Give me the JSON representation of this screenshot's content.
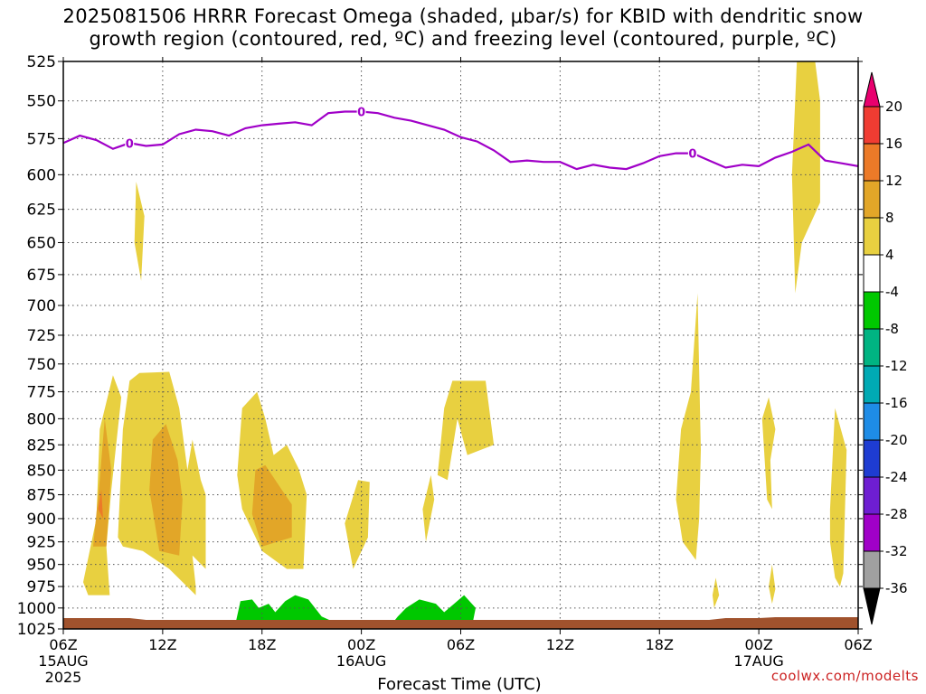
{
  "title": {
    "line1": "2025081506 HRRR Forecast Omega (shaded, μbar/s) for KBID with dendritic snow",
    "line2": "growth region (contoured, red, ºC) and freezing level (contoured, purple, ºC)"
  },
  "xlabel": "Forecast Time (UTC)",
  "credit": "coolwx.com/modelts",
  "chart_data": {
    "type": "time-height",
    "x_unit": "hours since 2025-08-15 06Z",
    "x_ticks": [
      {
        "x": 0,
        "label": "06Z",
        "date": "15AUG",
        "year": "2025"
      },
      {
        "x": 6,
        "label": "12Z"
      },
      {
        "x": 12,
        "label": "18Z"
      },
      {
        "x": 18,
        "label": "00Z",
        "date": "16AUG"
      },
      {
        "x": 24,
        "label": "06Z"
      },
      {
        "x": 30,
        "label": "12Z"
      },
      {
        "x": 36,
        "label": "18Z"
      },
      {
        "x": 42,
        "label": "00Z",
        "date": "17AUG"
      },
      {
        "x": 48,
        "label": "06Z"
      }
    ],
    "xlim": [
      0,
      48
    ],
    "ylim_hpa": [
      525,
      1025
    ],
    "y_ticks": [
      525,
      550,
      575,
      600,
      625,
      650,
      675,
      700,
      725,
      750,
      775,
      800,
      825,
      850,
      875,
      900,
      925,
      950,
      975,
      1000,
      1025
    ],
    "grid": true,
    "colorbar": {
      "labels": [
        "20",
        "16",
        "12",
        "8",
        "4",
        "-4",
        "-8",
        "-12",
        "-16",
        "-20",
        "-24",
        "-28",
        "-32",
        "-36"
      ],
      "colors_top_to_bottom": [
        "#e8006e",
        "#f03c32",
        "#ec7a28",
        "#e2a628",
        "#e8d040",
        "#ffffff",
        "#00c800",
        "#00b482",
        "#00aab4",
        "#1e8ce6",
        "#1e3cd2",
        "#6e1ed2",
        "#a000c8",
        "#a0a0a0",
        "#000000"
      ]
    },
    "freezing_level": {
      "label": "0",
      "color": "#a000c8",
      "points": [
        [
          0,
          578
        ],
        [
          1,
          573
        ],
        [
          2,
          576
        ],
        [
          3,
          582
        ],
        [
          4,
          578
        ],
        [
          5,
          580
        ],
        [
          6,
          579
        ],
        [
          7,
          572
        ],
        [
          8,
          569
        ],
        [
          9,
          570
        ],
        [
          10,
          573
        ],
        [
          11,
          568
        ],
        [
          12,
          566
        ],
        [
          13,
          565
        ],
        [
          14,
          564
        ],
        [
          15,
          566
        ],
        [
          16,
          558
        ],
        [
          17,
          557
        ],
        [
          18,
          557
        ],
        [
          19,
          558
        ],
        [
          20,
          561
        ],
        [
          21,
          563
        ],
        [
          22,
          566
        ],
        [
          23,
          569
        ],
        [
          24,
          574
        ],
        [
          25,
          577
        ],
        [
          26,
          583
        ],
        [
          27,
          591
        ],
        [
          28,
          590
        ],
        [
          29,
          591
        ],
        [
          30,
          591
        ],
        [
          31,
          596
        ],
        [
          32,
          593
        ],
        [
          33,
          595
        ],
        [
          34,
          596
        ],
        [
          35,
          592
        ],
        [
          36,
          587
        ],
        [
          37,
          585
        ],
        [
          38,
          585
        ],
        [
          39,
          590
        ],
        [
          40,
          595
        ],
        [
          41,
          593
        ],
        [
          42,
          594
        ],
        [
          43,
          588
        ],
        [
          44,
          584
        ],
        [
          45,
          579
        ],
        [
          46,
          590
        ],
        [
          47,
          592
        ],
        [
          48,
          594
        ]
      ]
    },
    "omega_regions": [
      {
        "level": "4",
        "color": "#e8d040",
        "points": [
          [
            1.2,
            970
          ],
          [
            2.0,
            900
          ],
          [
            2.2,
            810
          ],
          [
            3.0,
            760
          ],
          [
            3.5,
            780
          ],
          [
            2.9,
            870
          ],
          [
            2.6,
            930
          ],
          [
            2.8,
            985
          ],
          [
            1.5,
            985
          ]
        ]
      },
      {
        "level": "8",
        "color": "#e2a628",
        "points": [
          [
            1.8,
            930
          ],
          [
            2.2,
            860
          ],
          [
            2.5,
            800
          ],
          [
            2.9,
            850
          ],
          [
            2.6,
            930
          ]
        ]
      },
      {
        "level": "12",
        "color": "#ec7a28",
        "points": [
          [
            2.1,
            890
          ],
          [
            2.3,
            870
          ],
          [
            2.4,
            900
          ]
        ]
      },
      {
        "level": "4",
        "color": "#e8d040",
        "points": [
          [
            3.3,
            920
          ],
          [
            3.6,
            810
          ],
          [
            4.0,
            765
          ],
          [
            4.6,
            758
          ],
          [
            6.4,
            757
          ],
          [
            7.0,
            790
          ],
          [
            7.5,
            850
          ],
          [
            7.8,
            820
          ],
          [
            8.3,
            860
          ],
          [
            8.6,
            875
          ],
          [
            8.6,
            955
          ],
          [
            7.8,
            940
          ],
          [
            8.0,
            975
          ],
          [
            8.0,
            985
          ],
          [
            6.4,
            955
          ],
          [
            4.8,
            935
          ],
          [
            3.6,
            930
          ]
        ]
      },
      {
        "level": "8",
        "color": "#e2a628",
        "points": [
          [
            5.2,
            870
          ],
          [
            5.4,
            820
          ],
          [
            6.2,
            805
          ],
          [
            6.9,
            840
          ],
          [
            7.2,
            880
          ],
          [
            7.0,
            940
          ],
          [
            5.8,
            935
          ]
        ]
      },
      {
        "level": "4",
        "color": "#e8d040",
        "points": [
          [
            4.4,
            605
          ],
          [
            4.9,
            630
          ],
          [
            4.7,
            680
          ],
          [
            4.3,
            650
          ]
        ]
      },
      {
        "level": "4",
        "color": "#e8d040",
        "points": [
          [
            10.5,
            855
          ],
          [
            10.8,
            790
          ],
          [
            11.7,
            775
          ],
          [
            12.2,
            800
          ],
          [
            12.7,
            835
          ],
          [
            13.5,
            825
          ],
          [
            14.2,
            848
          ],
          [
            14.7,
            875
          ],
          [
            14.5,
            955
          ],
          [
            13.5,
            955
          ],
          [
            12.0,
            935
          ],
          [
            10.8,
            890
          ]
        ]
      },
      {
        "level": "8",
        "color": "#e2a628",
        "points": [
          [
            11.4,
            895
          ],
          [
            11.6,
            850
          ],
          [
            12.2,
            845
          ],
          [
            13.2,
            870
          ],
          [
            13.8,
            885
          ],
          [
            13.8,
            920
          ],
          [
            12.0,
            930
          ]
        ]
      },
      {
        "level": "4",
        "color": "#e8d040",
        "points": [
          [
            17.0,
            905
          ],
          [
            17.8,
            860
          ],
          [
            18.5,
            862
          ],
          [
            18.4,
            920
          ],
          [
            17.5,
            955
          ]
        ]
      },
      {
        "level": "4",
        "color": "#e8d040",
        "points": [
          [
            21.7,
            890
          ],
          [
            22.2,
            855
          ],
          [
            22.4,
            880
          ],
          [
            21.9,
            925
          ]
        ]
      },
      {
        "level": "4",
        "color": "#e8d040",
        "points": [
          [
            22.6,
            855
          ],
          [
            23.0,
            790
          ],
          [
            23.5,
            765
          ],
          [
            25.5,
            765
          ],
          [
            26.0,
            825
          ],
          [
            24.4,
            835
          ],
          [
            23.8,
            800
          ],
          [
            23.2,
            860
          ]
        ]
      },
      {
        "level": "4",
        "color": "#e8d040",
        "points": [
          [
            37.0,
            880
          ],
          [
            37.3,
            810
          ],
          [
            37.9,
            775
          ],
          [
            38.3,
            690
          ],
          [
            38.5,
            830
          ],
          [
            38.4,
            900
          ],
          [
            38.2,
            945
          ],
          [
            37.4,
            925
          ]
        ]
      },
      {
        "level": "4",
        "color": "#e8d040",
        "points": [
          [
            39.2,
            985
          ],
          [
            39.4,
            965
          ],
          [
            39.6,
            985
          ],
          [
            39.3,
            1000
          ]
        ]
      },
      {
        "level": "4",
        "color": "#e8d040",
        "points": [
          [
            42.2,
            800
          ],
          [
            42.6,
            780
          ],
          [
            43.0,
            810
          ],
          [
            42.7,
            840
          ],
          [
            42.8,
            890
          ],
          [
            42.5,
            880
          ]
        ]
      },
      {
        "level": "4",
        "color": "#e8d040",
        "points": [
          [
            42.6,
            975
          ],
          [
            42.8,
            950
          ],
          [
            43.0,
            978
          ],
          [
            42.8,
            995
          ]
        ]
      },
      {
        "level": "4",
        "color": "#e8d040",
        "points": [
          [
            44.0,
            600
          ],
          [
            44.3,
            525
          ],
          [
            45.4,
            525
          ],
          [
            45.7,
            550
          ],
          [
            45.7,
            620
          ],
          [
            44.6,
            650
          ],
          [
            44.2,
            690
          ]
        ]
      },
      {
        "level": "4",
        "color": "#e8d040",
        "points": [
          [
            46.3,
            890
          ],
          [
            46.6,
            790
          ],
          [
            47.3,
            830
          ],
          [
            47.1,
            960
          ],
          [
            46.9,
            975
          ],
          [
            46.6,
            965
          ],
          [
            46.3,
            925
          ]
        ]
      },
      {
        "level": "-4",
        "color": "#00c800",
        "points": [
          [
            10.4,
            1018
          ],
          [
            10.7,
            992
          ],
          [
            11.4,
            990
          ],
          [
            11.8,
            1000
          ],
          [
            12.4,
            995
          ],
          [
            12.8,
            1005
          ],
          [
            13.4,
            992
          ],
          [
            14.0,
            985
          ],
          [
            14.8,
            990
          ],
          [
            15.4,
            1005
          ],
          [
            15.6,
            1010
          ],
          [
            16.6,
            1019
          ]
        ]
      },
      {
        "level": "-4",
        "color": "#00c800",
        "points": [
          [
            19.8,
            1020
          ],
          [
            20.2,
            1010
          ],
          [
            20.7,
            1000
          ],
          [
            21.5,
            990
          ],
          [
            22.5,
            995
          ],
          [
            23.0,
            1005
          ],
          [
            23.6,
            995
          ],
          [
            24.2,
            985
          ],
          [
            24.9,
            1000
          ],
          [
            24.7,
            1020
          ]
        ]
      }
    ],
    "terrain": {
      "color": "#a0522d",
      "top_hpa": 1012
    }
  }
}
